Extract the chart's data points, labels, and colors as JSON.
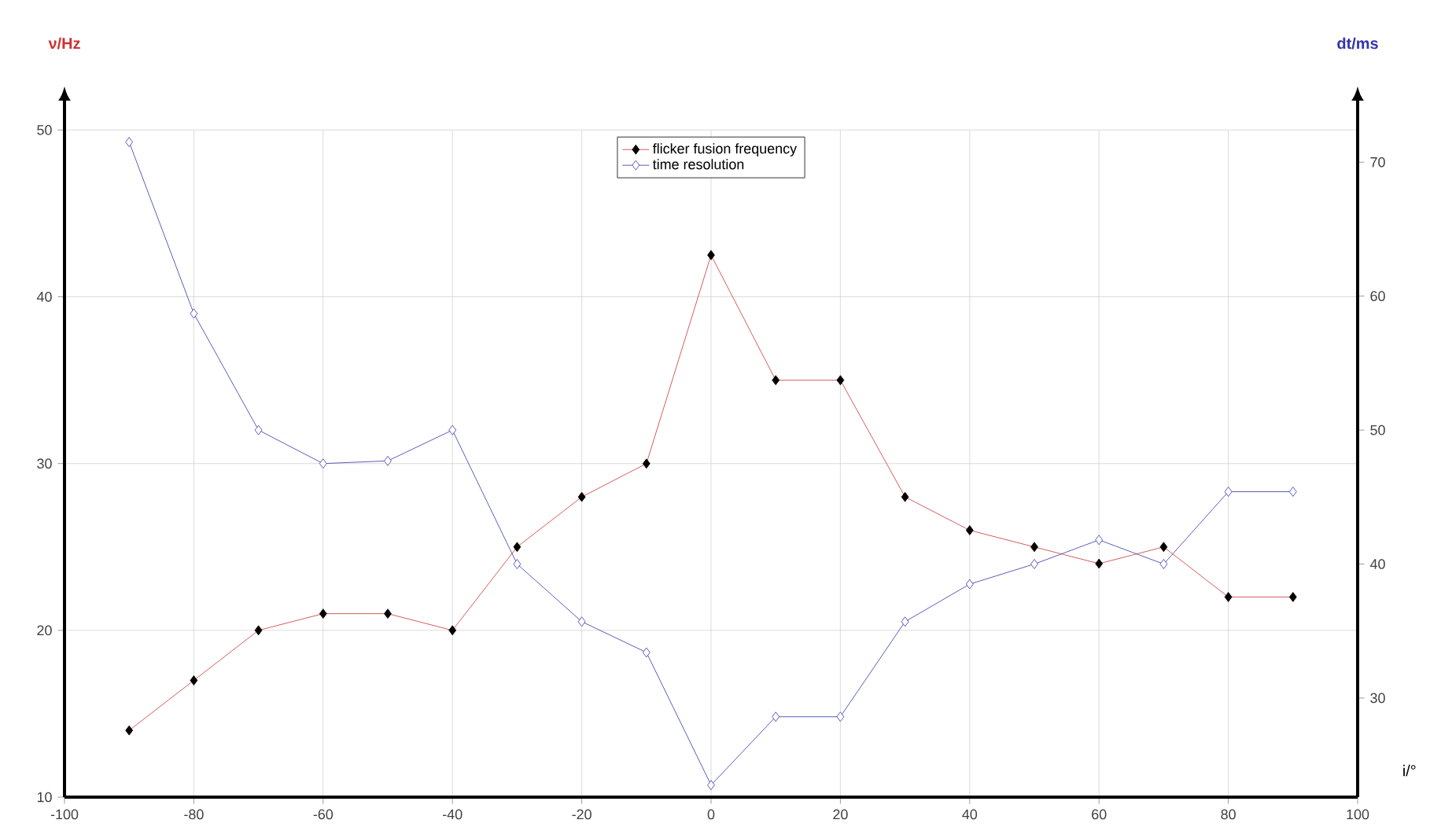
{
  "chart_data": {
    "type": "line",
    "xlabel": "i/°",
    "ylabel": "ν/Hz",
    "y2label": "dt/ms",
    "x": [
      -90,
      -80,
      -70,
      -60,
      -50,
      -40,
      -30,
      -20,
      -10,
      0,
      10,
      20,
      30,
      40,
      50,
      60,
      70,
      80,
      90
    ],
    "series": [
      {
        "name": "flicker fusion frequency",
        "color": "#cc3333",
        "values": [
          14,
          17,
          20,
          21,
          21,
          20,
          25,
          28,
          30,
          42.5,
          35,
          35,
          28,
          26,
          25,
          24,
          25,
          22,
          22
        ]
      },
      {
        "name": "time resolution",
        "color": "#3333aa",
        "axis": "y2",
        "values": [
          71.5,
          58.7,
          50,
          47.5,
          47.7,
          50,
          40,
          35.7,
          33.4,
          23.5,
          28.6,
          28.6,
          35.7,
          38.5,
          40,
          41.8,
          40,
          45.4,
          45.4
        ]
      }
    ],
    "xlim": [
      -100,
      100
    ],
    "xticks": [
      -100,
      -80,
      -60,
      -40,
      -20,
      0,
      20,
      40,
      60,
      80,
      100
    ],
    "ylim": [
      10,
      50
    ],
    "yticks": [
      10,
      20,
      30,
      40,
      50
    ],
    "y2lim": [
      22.6,
      72.4
    ],
    "y2ticks": [
      30,
      40,
      50,
      60,
      70
    ],
    "grid": true,
    "legend": "top",
    "marker": "diamond",
    "line_style": "solid"
  }
}
